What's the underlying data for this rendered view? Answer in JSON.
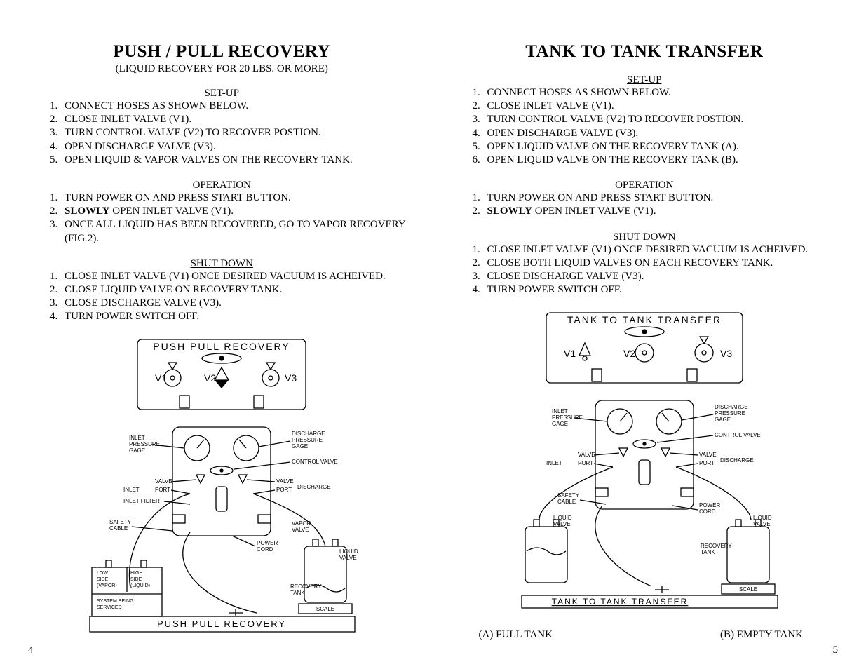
{
  "left": {
    "title": "PUSH / PULL RECOVERY",
    "subtitle": "(LIQUID RECOVERY FOR 20 LBS. OR MORE)",
    "setup_head": "SET-UP",
    "setup": [
      "CONNECT HOSES AS SHOWN BELOW.",
      "CLOSE INLET VALVE  (V1).",
      "TURN CONTROL VALVE (V2) TO RECOVER POSTION.",
      "OPEN DISCHARGE VALVE (V3).",
      "OPEN LIQUID & VAPOR VALVES ON THE RECOVERY TANK."
    ],
    "op_head": "OPERATION",
    "op": [
      "TURN POWER ON AND PRESS START BUTTON.",
      {
        "pre": "",
        "em": "SLOWLY",
        "post": " OPEN INLET VALVE (V1)."
      },
      "ONCE ALL LIQUID HAS BEEN RECOVERED, GO TO VAPOR RECOVERY (FIG 2)."
    ],
    "shut_head": "SHUT DOWN",
    "shut": [
      "CLOSE INLET VALVE (V1) ONCE DESIRED VACUUM IS ACHEIVED.",
      "CLOSE LIQUID VALVE ON RECOVERY TANK.",
      "CLOSE DISCHARGE VALVE (V3).",
      "TURN POWER SWITCH OFF."
    ],
    "pagenum": "4",
    "diagram": {
      "top_title": "PUSH PULL RECOVERY",
      "v1": "V1",
      "v2": "V2",
      "v3": "V3",
      "inlet_pressure": "INLET\nPRESSURE\nGAGE",
      "discharge_pressure": "DISCHARGE\nPRESSURE\nGAGE",
      "control_valve": "CONTROL VALVE",
      "valve_l": "VALVE",
      "inlet": "INLET",
      "port_l": "PORT",
      "inlet_filter": "INLET FILTER",
      "valve_r": "VALVE",
      "discharge": "DISCHARGE",
      "port_r": "PORT",
      "safety_cable": "SAFETY\nCABLE",
      "power_cord": "POWER\nCORD",
      "vapor_valve": "VAPOR\nVALVE",
      "liquid_valve": "LIQUID\nVALVE",
      "low_side": "LOW\nSIDE\n(VAPOR)",
      "high_side": "HIGH\nSIDE\n(LIQUID)",
      "system": "SYSTEM BEING\nSERVICED",
      "recovery_tank": "RECOVERY\nTANK",
      "bottom_title": "PUSH PULL RECOVERY",
      "scale": "SCALE"
    }
  },
  "right": {
    "title": "TANK TO TANK TRANSFER",
    "setup_head": "SET-UP",
    "setup": [
      "CONNECT HOSES AS SHOWN BELOW.",
      "CLOSE INLET VALVE  (V1).",
      "TURN CONTROL VALVE (V2) TO RECOVER POSTION.",
      "OPEN DISCHARGE VALVE (V3).",
      "OPEN LIQUID VALVE ON THE RECOVERY TANK (A).",
      "OPEN LIQUID VALVE ON THE RECOVERY TANK (B)."
    ],
    "op_head": "OPERATION",
    "op": [
      "TURN POWER ON AND PRESS START BUTTON.",
      {
        "pre": "",
        "em": "SLOWLY",
        "post": " OPEN INLET VALVE (V1)."
      }
    ],
    "shut_head": "SHUT DOWN",
    "shut": [
      "CLOSE INLET VALVE (V1) ONCE DESIRED VACUUM IS ACHEIVED.",
      "CLOSE BOTH LIQUID VALVES ON EACH RECOVERY TANK.",
      "CLOSE DISCHARGE VALVE (V3).",
      "TURN POWER SWITCH OFF."
    ],
    "pagenum": "5",
    "caption_a": "(A) FULL TANK",
    "caption_b": "(B)  EMPTY TANK",
    "diagram": {
      "top_title": "TANK TO TANK TRANSFER",
      "v1": "V1",
      "v2": "V2",
      "v3": "V3",
      "inlet_pressure": "INLET\nPRESSURE\nGAGE",
      "discharge_pressure": "DISCHARGE\nPRESSURE\nGAGE",
      "control_valve": "CONTROL VALVE",
      "valve_l": "VALVE",
      "inlet": "INLET",
      "port_l": "PORT",
      "valve_r": "VALVE",
      "discharge": "DISCHARGE",
      "port_r": "PORT",
      "safety_cable": "SAFETY\nCABLE",
      "power_cord": "POWER\nCORD",
      "liquid_valve_l": "LIQUID\nVALVE",
      "liquid_valve_r": "LIQUID\nVALVE",
      "recovery_tank": "RECOVERY\nTANK",
      "bottom_title": "TANK TO TANK TRANSFER",
      "scale": "SCALE"
    }
  },
  "style": {
    "stroke": "#000000",
    "stroke_w": 1.3,
    "font_small": 8,
    "font_med": 11
  }
}
